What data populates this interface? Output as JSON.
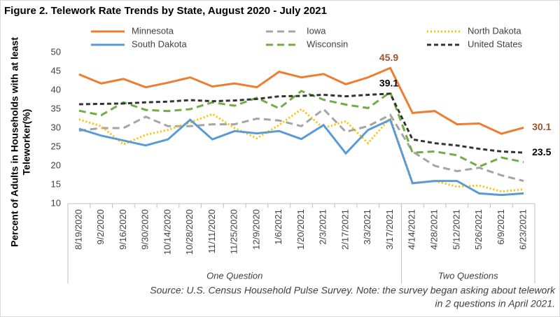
{
  "chart_data": {
    "type": "line",
    "title": "Figure 2. Telework Rate Trends by State, August 2020 - July 2021",
    "y_label": [
      "Percent of Adults in Households with at least",
      "Teleworker(%)"
    ],
    "source": [
      "Source: U.S. Census Household Pulse Survey. Note: the survey began asking about telework",
      "in 2 questions in April 2021."
    ],
    "categories": [
      "8/19/2020",
      "9/2/2020",
      "9/16/2020",
      "9/30/2020",
      "10/14/2020",
      "10/28/2020",
      "11/11/2020",
      "11/25/2020",
      "12/9/2020",
      "1/6/2021",
      "1/20/2021",
      "2/3/2021",
      "2/17/2021",
      "3/3/2021",
      "3/17/2021",
      "4/14/2021",
      "4/28/2021",
      "5/12/2021",
      "5/26/2021",
      "6/9/2021",
      "6/23/2021"
    ],
    "x_groups": [
      {
        "label": "One Question",
        "span": 15
      },
      {
        "label": "Two Questions",
        "span": 6
      }
    ],
    "series": [
      {
        "name": "Minnesota",
        "color": "#ed7d31",
        "dash": "solid",
        "label_color": "#a0522d",
        "labels_at": [
          14,
          20
        ],
        "values": [
          44.2,
          41.8,
          43,
          40.8,
          42,
          43.4,
          41,
          41.8,
          40.8,
          44.9,
          43.4,
          44.3,
          41.6,
          43.4,
          45.9,
          34,
          34.5,
          31,
          31.2,
          28.5,
          30.1
        ]
      },
      {
        "name": "Iowa",
        "color": "#a5a5a5",
        "dash": "dash",
        "values": [
          29.3,
          30,
          30,
          33,
          30.5,
          30.5,
          31,
          31,
          32.5,
          32,
          30.5,
          35,
          29,
          30.5,
          33.5,
          23.8,
          20,
          18.6,
          19.5,
          17.5,
          16
        ]
      },
      {
        "name": "North Dakota",
        "color": "#ffc000",
        "dash": "dot",
        "values": [
          32.3,
          30.5,
          25.7,
          28.2,
          29.5,
          31.5,
          33.7,
          30,
          27.3,
          30.8,
          35,
          30,
          31.8,
          26,
          32.7,
          15.5,
          16,
          14.5,
          14.8,
          13.2,
          13.8
        ]
      },
      {
        "name": "South Dakota",
        "color": "#5b9bd5",
        "dash": "solid",
        "values": [
          29.8,
          28,
          26.7,
          25.4,
          27,
          32.2,
          27,
          29.2,
          28.6,
          29.2,
          27.1,
          30.8,
          23.3,
          29.5,
          32.2,
          15.4,
          16,
          16,
          12.7,
          12.3,
          12.7
        ]
      },
      {
        "name": "Wisconsin",
        "color": "#70ad47",
        "dash": "dash",
        "values": [
          34.6,
          33.4,
          36.8,
          34.8,
          34.5,
          35,
          36.8,
          35.9,
          38,
          35.2,
          39.8,
          37.5,
          36.2,
          35.3,
          39.5,
          23.5,
          23.8,
          22.8,
          19.8,
          22.2,
          21
        ]
      },
      {
        "name": "United States",
        "color": "#333333",
        "dash": "shortdash",
        "label_color": "#000000",
        "labels_at": [
          14,
          20
        ],
        "values": [
          36.3,
          36.4,
          36.5,
          36.8,
          37,
          37.4,
          37.1,
          37.3,
          37.7,
          38.4,
          38.5,
          38.8,
          38.4,
          38.8,
          39.1,
          27,
          26,
          25.4,
          24.5,
          23.8,
          23.5
        ]
      }
    ],
    "ylim": [
      10,
      50
    ],
    "yticks": [
      10,
      15,
      20,
      25,
      30,
      35,
      40,
      45,
      50
    ],
    "grid": false
  }
}
